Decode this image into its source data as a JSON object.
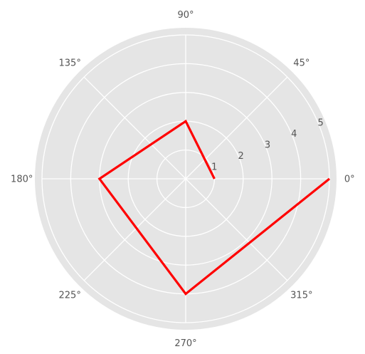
{
  "chart_data": {
    "type": "line",
    "projection": "polar",
    "theta_unit": "degrees",
    "r_max": 5,
    "angular_tick_labels": [
      {
        "theta": 0,
        "label": "0°"
      },
      {
        "theta": 45,
        "label": "45°"
      },
      {
        "theta": 90,
        "label": "90°"
      },
      {
        "theta": 135,
        "label": "135°"
      },
      {
        "theta": 180,
        "label": "180°"
      },
      {
        "theta": 225,
        "label": "225°"
      },
      {
        "theta": 270,
        "label": "270°"
      },
      {
        "theta": 315,
        "label": "315°"
      }
    ],
    "radial_tick_labels": [
      {
        "r": 1,
        "label": "1"
      },
      {
        "r": 2,
        "label": "2"
      },
      {
        "r": 3,
        "label": "3"
      },
      {
        "r": 4,
        "label": "4"
      },
      {
        "r": 5,
        "label": "5"
      }
    ],
    "radial_label_angle": 22.5,
    "grid": true,
    "series": [
      {
        "color": "#ff0000",
        "points": [
          {
            "theta": 0,
            "r": 1
          },
          {
            "theta": 90,
            "r": 2
          },
          {
            "theta": 180,
            "r": 3
          },
          {
            "theta": 270,
            "r": 4
          },
          {
            "theta": 360,
            "r": 5
          }
        ]
      }
    ],
    "background_color": "#e5e5e5",
    "grid_color": "#ffffff",
    "tick_color": "#555555"
  }
}
